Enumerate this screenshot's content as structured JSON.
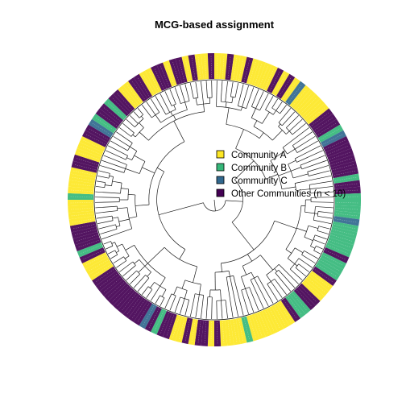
{
  "figure": {
    "title": "MCG-based assignment"
  },
  "legend": {
    "items": [
      {
        "label": "Community A",
        "color": "#FDE725"
      },
      {
        "label": "Community B",
        "color": "#35B779"
      },
      {
        "label": "Community C",
        "color": "#31688E"
      },
      {
        "label": "Other Communities (n < 10)",
        "color": "#440154"
      }
    ]
  },
  "tree": {
    "layout": "circular",
    "tip_ring_colors": [
      "#FDE725",
      "#FDE725",
      "#440154",
      "#FDE725",
      "#FDE725",
      "#440154",
      "#FDE725",
      "#FDE725",
      "#FDE725",
      "#FDE725",
      "#440154",
      "#FDE725",
      "#440154",
      "#FDE725",
      "#31688E",
      "#FDE725",
      "#FDE725",
      "#FDE725",
      "#FDE725",
      "#FDE725",
      "#440154",
      "#440154",
      "#440154",
      "#35B779",
      "#31688E",
      "#440154",
      "#440154",
      "#440154",
      "#440154",
      "#440154",
      "#440154",
      "#35B779",
      "#440154",
      "#440154",
      "#35B779",
      "#35B779",
      "#35B779",
      "#35B779",
      "#31688E",
      "#35B779",
      "#35B779",
      "#35B779",
      "#35B779",
      "#35B779",
      "#440154",
      "#35B779",
      "#35B779",
      "#35B779",
      "#440154",
      "#FDE725",
      "#FDE725",
      "#FDE725",
      "#440154",
      "#440154",
      "#35B779",
      "#35B779",
      "#440154",
      "#FDE725",
      "#FDE725",
      "#FDE725",
      "#FDE725",
      "#FDE725",
      "#FDE725",
      "#FDE725",
      "#35B779",
      "#FDE725",
      "#FDE725",
      "#FDE725",
      "#FDE725",
      "#440154",
      "#FDE725",
      "#440154",
      "#440154",
      "#FDE725",
      "#440154",
      "#FDE725",
      "#FDE725",
      "#440154",
      "#440154",
      "#35B779",
      "#440154",
      "#31688E",
      "#440154",
      "#440154",
      "#440154",
      "#440154",
      "#440154",
      "#440154",
      "#440154",
      "#440154",
      "#440154",
      "#440154",
      "#FDE725",
      "#FDE725",
      "#FDE725",
      "#440154",
      "#35B779",
      "#440154",
      "#440154",
      "#440154",
      "#440154",
      "#FDE725",
      "#FDE725",
      "#FDE725",
      "#FDE725",
      "#35B779",
      "#FDE725",
      "#FDE725",
      "#FDE725",
      "#FDE725",
      "#440154",
      "#440154",
      "#FDE725",
      "#FDE725",
      "#FDE725",
      "#440154",
      "#440154",
      "#31688E",
      "#35B779",
      "#440154",
      "#440154",
      "#35B779",
      "#440154",
      "#440154",
      "#FDE725",
      "#FDE725",
      "#440154",
      "#440154",
      "#FDE725",
      "#FDE725",
      "#440154",
      "#440154",
      "#FDE725",
      "#440154",
      "#440154",
      "#FDE725",
      "#440154",
      "#FDE725",
      "#FDE725",
      "#440154"
    ]
  }
}
